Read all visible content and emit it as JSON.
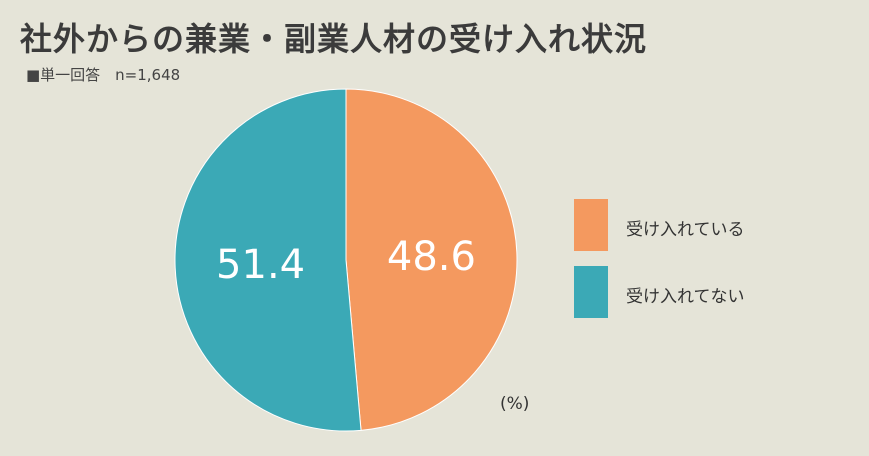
{
  "title": "社外からの兼業・副業人材の受け入れ状況",
  "subtitle": "■単一回答　n=1,648",
  "unit": "(%)",
  "colors": {
    "background": "#e5e4d8",
    "accepting": "#f4995f",
    "not_accepting": "#3ba9b6"
  },
  "chart_data": {
    "type": "pie",
    "slices": [
      {
        "label": "受け入れている",
        "value": 48.6,
        "color": "#f4995f"
      },
      {
        "label": "受け入れてない",
        "value": 51.4,
        "color": "#3ba9b6"
      }
    ],
    "start": "12 o'clock",
    "direction": "clockwise",
    "legend": "right"
  }
}
